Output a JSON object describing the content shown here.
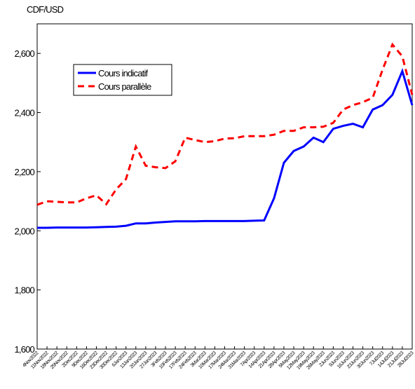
{
  "chart_data": {
    "type": "line",
    "y_label": "CDF/USD",
    "categories": [
      "4Nov2022",
      "11Nov2022",
      "18Nov2022",
      "25Nov2022",
      "2Dec2022",
      "9Dec2022",
      "16Dec2022",
      "23Dec2022",
      "30Dec2022",
      "6Jan2023",
      "13Jan2023",
      "20Jan2023",
      "27Jan2023",
      "3Feb2023",
      "10Feb2023",
      "17Feb2023",
      "24Feb2023",
      "3Mar2023",
      "10Mar2023",
      "17Mar2023",
      "24Mar2023",
      "31Mar2023",
      "7Apr2023",
      "14Apr2023",
      "21Apr2023",
      "28Apr2023",
      "5May2023",
      "12May2023",
      "19May2023",
      "26May2023",
      "2Jun2023",
      "9Jun2023",
      "16Jun2023",
      "23Jun2023",
      "30Jun2023",
      "7Jul2023",
      "14Jul2023",
      "21Jul2023",
      "28Jul2023"
    ],
    "series": [
      {
        "name": "Cours indicatif",
        "color": "#0000ff",
        "dash": "solid",
        "values": [
          2010,
          2010,
          2011,
          2011,
          2011,
          2011,
          2012,
          2013,
          2014,
          2017,
          2025,
          2025,
          2028,
          2030,
          2032,
          2032,
          2032,
          2033,
          2033,
          2033,
          2033,
          2033,
          2034,
          2035,
          2110,
          2230,
          2270,
          2285,
          2315,
          2300,
          2345,
          2355,
          2362,
          2350,
          2410,
          2425,
          2460,
          2540,
          2425
        ]
      },
      {
        "name": "Cours parallèle",
        "color": "#ff0000",
        "dash": "dashed",
        "values": [
          2088,
          2100,
          2098,
          2096,
          2096,
          2110,
          2120,
          2090,
          2140,
          2175,
          2285,
          2220,
          2215,
          2212,
          2235,
          2315,
          2307,
          2300,
          2303,
          2312,
          2313,
          2320,
          2320,
          2320,
          2325,
          2338,
          2338,
          2350,
          2350,
          2352,
          2365,
          2410,
          2425,
          2435,
          2450,
          2545,
          2630,
          2590,
          2460
        ]
      }
    ],
    "ylim": [
      1600,
      2700
    ],
    "yticks": [
      {
        "value": 1600,
        "label": "1,600"
      },
      {
        "value": 1800,
        "label": "1,800"
      },
      {
        "value": 2000,
        "label": "2,000"
      },
      {
        "value": 2200,
        "label": "2,200"
      },
      {
        "value": 2400,
        "label": "2,400"
      },
      {
        "value": 2600,
        "label": "2,600"
      }
    ],
    "grid": false,
    "legend": "upper left"
  }
}
